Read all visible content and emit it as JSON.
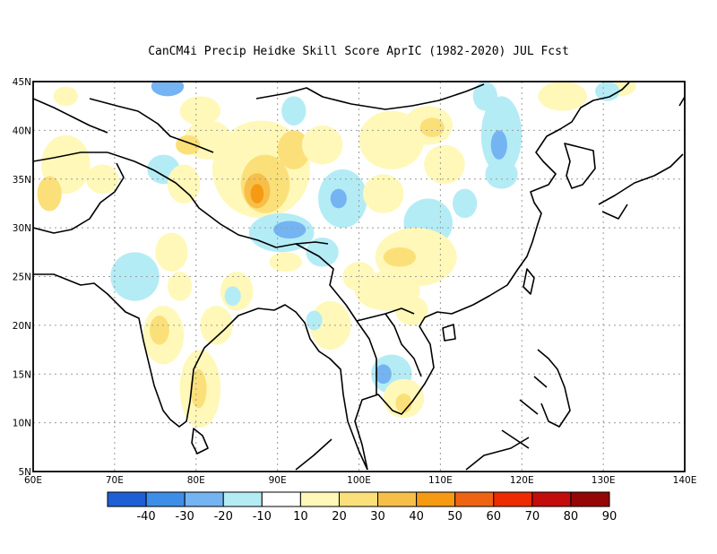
{
  "title": "CanCM4i Precip Heidke Skill Score AprIC (1982-2020) JUL Fcst",
  "map": {
    "lon_range": [
      60,
      140
    ],
    "lat_range": [
      5,
      45
    ],
    "x_ticks": [
      {
        "value": 60,
        "label": "60E"
      },
      {
        "value": 70,
        "label": "70E"
      },
      {
        "value": 80,
        "label": "80E"
      },
      {
        "value": 90,
        "label": "90E"
      },
      {
        "value": 100,
        "label": "100E"
      },
      {
        "value": 110,
        "label": "110E"
      },
      {
        "value": 120,
        "label": "120E"
      },
      {
        "value": 130,
        "label": "130E"
      },
      {
        "value": 140,
        "label": "140E"
      }
    ],
    "y_ticks": [
      {
        "value": 45,
        "label": "45N"
      },
      {
        "value": 40,
        "label": "40N"
      },
      {
        "value": 35,
        "label": "35N"
      },
      {
        "value": 30,
        "label": "30N"
      },
      {
        "value": 25,
        "label": "25N"
      },
      {
        "value": 20,
        "label": "20N"
      },
      {
        "value": 15,
        "label": "15N"
      },
      {
        "value": 10,
        "label": "10N"
      },
      {
        "value": 5,
        "label": "5N"
      }
    ],
    "grid": true,
    "colorbar": {
      "colors": [
        "#1f5fd6",
        "#3d8ee8",
        "#74b4f2",
        "#b4ecf6",
        "#ffffff",
        "#fff8b8",
        "#fbe07a",
        "#f8bf48",
        "#f59a12",
        "#ee6412",
        "#ee2a00",
        "#c30c0c",
        "#950606"
      ],
      "labels": [
        "-40",
        "-30",
        "-20",
        "-10",
        "10",
        "20",
        "30",
        "40",
        "50",
        "60",
        "70",
        "80",
        "90"
      ]
    },
    "patches": [
      {
        "lon": 64,
        "lat": 43.5,
        "rx": 1.5,
        "ry": 1,
        "level": 20
      },
      {
        "lon": 76.5,
        "lat": 44.5,
        "rx": 2,
        "ry": 1,
        "level": -20
      },
      {
        "lon": 80.5,
        "lat": 42,
        "rx": 2.5,
        "ry": 1.5,
        "level": 20
      },
      {
        "lon": 81.5,
        "lat": 39,
        "rx": 3,
        "ry": 2,
        "level": 20
      },
      {
        "lon": 79,
        "lat": 38.5,
        "rx": 1.5,
        "ry": 1,
        "level": 30
      },
      {
        "lon": 76,
        "lat": 36,
        "rx": 2,
        "ry": 1.5,
        "level": -10
      },
      {
        "lon": 78.5,
        "lat": 34.5,
        "rx": 2,
        "ry": 2,
        "level": 20
      },
      {
        "lon": 64,
        "lat": 36.5,
        "rx": 3,
        "ry": 3,
        "level": 20
      },
      {
        "lon": 62,
        "lat": 33.5,
        "rx": 1.5,
        "ry": 1.8,
        "level": 30
      },
      {
        "lon": 68.5,
        "lat": 35,
        "rx": 2,
        "ry": 1.5,
        "level": 20
      },
      {
        "lon": 85,
        "lat": 33.5,
        "rx": 1.5,
        "ry": 1.5,
        "level": -10
      },
      {
        "lon": 88,
        "lat": 36,
        "rx": 6,
        "ry": 5,
        "level": 20
      },
      {
        "lon": 88.5,
        "lat": 34.5,
        "rx": 3,
        "ry": 3,
        "level": 30
      },
      {
        "lon": 87.5,
        "lat": 33.8,
        "rx": 1.6,
        "ry": 1.8,
        "level": 40
      },
      {
        "lon": 87.5,
        "lat": 33.5,
        "rx": 0.8,
        "ry": 1,
        "level": 50
      },
      {
        "lon": 92,
        "lat": 38,
        "rx": 2,
        "ry": 2,
        "level": 30
      },
      {
        "lon": 92,
        "lat": 42,
        "rx": 1.5,
        "ry": 1.5,
        "level": -10
      },
      {
        "lon": 90.5,
        "lat": 29.5,
        "rx": 4,
        "ry": 2,
        "level": -10
      },
      {
        "lon": 91.5,
        "lat": 29.8,
        "rx": 2,
        "ry": 0.9,
        "level": -20
      },
      {
        "lon": 95.5,
        "lat": 38.5,
        "rx": 2.5,
        "ry": 2,
        "level": 20
      },
      {
        "lon": 98,
        "lat": 33,
        "rx": 3,
        "ry": 3,
        "level": -10
      },
      {
        "lon": 97.5,
        "lat": 33,
        "rx": 1,
        "ry": 1,
        "level": -20
      },
      {
        "lon": 103,
        "lat": 33.5,
        "rx": 2.5,
        "ry": 2,
        "level": 20
      },
      {
        "lon": 104,
        "lat": 39,
        "rx": 4,
        "ry": 3,
        "level": 20
      },
      {
        "lon": 108.5,
        "lat": 40.5,
        "rx": 3,
        "ry": 2,
        "level": 20
      },
      {
        "lon": 109,
        "lat": 40.3,
        "rx": 1.5,
        "ry": 1,
        "level": 30
      },
      {
        "lon": 108.5,
        "lat": 30.5,
        "rx": 3,
        "ry": 2.5,
        "level": -10
      },
      {
        "lon": 113,
        "lat": 32.5,
        "rx": 1.5,
        "ry": 1.5,
        "level": -10
      },
      {
        "lon": 117.5,
        "lat": 39.5,
        "rx": 2.5,
        "ry": 4,
        "level": -10
      },
      {
        "lon": 117.2,
        "lat": 38.5,
        "rx": 1,
        "ry": 1.5,
        "level": -20
      },
      {
        "lon": 115.5,
        "lat": 43.5,
        "rx": 1.5,
        "ry": 1.5,
        "level": -10
      },
      {
        "lon": 125,
        "lat": 43.5,
        "rx": 3,
        "ry": 1.5,
        "level": 20
      },
      {
        "lon": 132,
        "lat": 44.5,
        "rx": 2,
        "ry": 1,
        "level": 20
      },
      {
        "lon": 130.5,
        "lat": 44,
        "rx": 1.5,
        "ry": 1,
        "level": -10
      },
      {
        "lon": 117.5,
        "lat": 35.5,
        "rx": 2,
        "ry": 1.5,
        "level": -10
      },
      {
        "lon": 107,
        "lat": 27,
        "rx": 5,
        "ry": 3,
        "level": 20
      },
      {
        "lon": 105,
        "lat": 27,
        "rx": 2,
        "ry": 1,
        "level": 30
      },
      {
        "lon": 103.5,
        "lat": 23.5,
        "rx": 4,
        "ry": 2,
        "level": 20
      },
      {
        "lon": 100,
        "lat": 25,
        "rx": 2,
        "ry": 1.5,
        "level": 20
      },
      {
        "lon": 95.5,
        "lat": 27.5,
        "rx": 2,
        "ry": 1.5,
        "level": -10
      },
      {
        "lon": 91,
        "lat": 26.5,
        "rx": 2,
        "ry": 1,
        "level": 20
      },
      {
        "lon": 72.5,
        "lat": 25,
        "rx": 3,
        "ry": 2.5,
        "level": -10
      },
      {
        "lon": 77,
        "lat": 27.5,
        "rx": 2,
        "ry": 2,
        "level": 20
      },
      {
        "lon": 78,
        "lat": 24,
        "rx": 1.5,
        "ry": 1.5,
        "level": 20
      },
      {
        "lon": 85,
        "lat": 23.5,
        "rx": 2,
        "ry": 2,
        "level": 20
      },
      {
        "lon": 84.5,
        "lat": 23,
        "rx": 1,
        "ry": 1,
        "level": -10
      },
      {
        "lon": 82.5,
        "lat": 20,
        "rx": 2,
        "ry": 2,
        "level": 20
      },
      {
        "lon": 76,
        "lat": 19,
        "rx": 2.5,
        "ry": 3,
        "level": 20
      },
      {
        "lon": 75.5,
        "lat": 19.5,
        "rx": 1.2,
        "ry": 1.5,
        "level": 30
      },
      {
        "lon": 80.5,
        "lat": 13.5,
        "rx": 2.5,
        "ry": 4,
        "level": 20
      },
      {
        "lon": 80.3,
        "lat": 13.5,
        "rx": 1,
        "ry": 2,
        "level": 30
      },
      {
        "lon": 96.5,
        "lat": 20,
        "rx": 2.5,
        "ry": 2.5,
        "level": 20
      },
      {
        "lon": 94.5,
        "lat": 20.5,
        "rx": 1,
        "ry": 1,
        "level": -10
      },
      {
        "lon": 104,
        "lat": 15,
        "rx": 2.5,
        "ry": 2,
        "level": -10
      },
      {
        "lon": 103,
        "lat": 15,
        "rx": 1,
        "ry": 1,
        "level": -20
      },
      {
        "lon": 105.5,
        "lat": 12.5,
        "rx": 2.5,
        "ry": 2,
        "level": 20
      },
      {
        "lon": 105.5,
        "lat": 12,
        "rx": 1,
        "ry": 1,
        "level": 30
      },
      {
        "lon": 106.5,
        "lat": 21.5,
        "rx": 2,
        "ry": 1.5,
        "level": 20
      },
      {
        "lon": 110.5,
        "lat": 36.5,
        "rx": 2.5,
        "ry": 2,
        "level": 20
      }
    ]
  }
}
